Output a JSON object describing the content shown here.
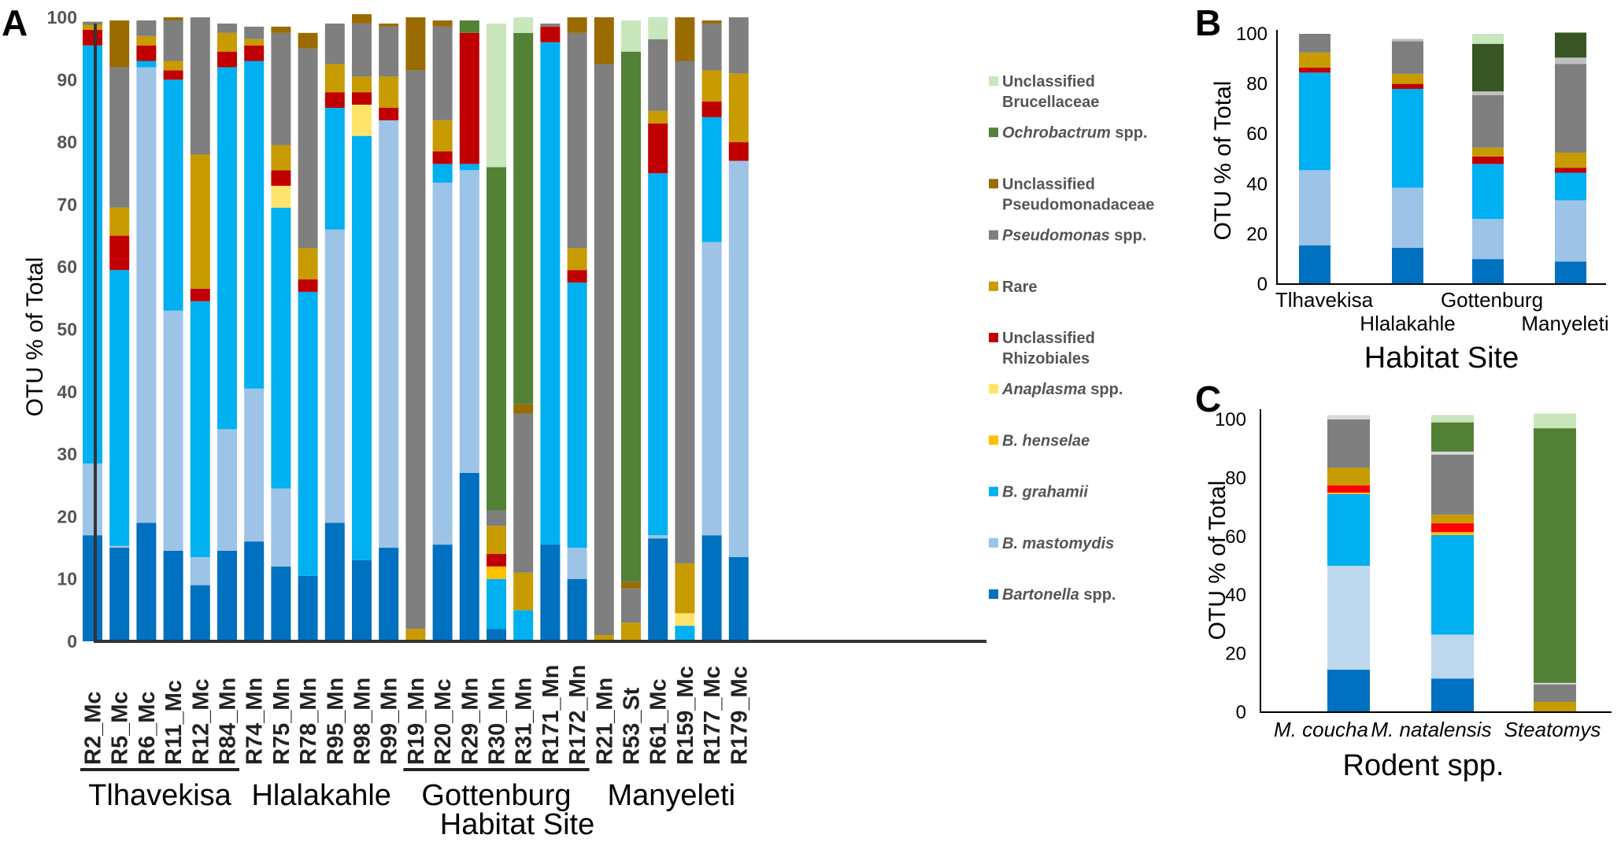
{
  "legend": [
    {
      "key": "unc_bru",
      "lines": [
        "Unclassified",
        "Brucellaceae"
      ],
      "italic": false,
      "color": "#c9e6bc"
    },
    {
      "key": "ochro",
      "lines": [
        "Ochrobactrum spp."
      ],
      "italic": true,
      "color": "#538135"
    },
    {
      "key": "unc_pse",
      "lines": [
        "Unclassified",
        "Pseudomonadaceae"
      ],
      "italic": false,
      "color": "#9a6b00"
    },
    {
      "key": "pseudo",
      "lines": [
        "Pseudomonas spp."
      ],
      "italic": true,
      "color": "#7f7f7f"
    },
    {
      "key": "rare",
      "lines": [
        "Rare"
      ],
      "italic": false,
      "color": "#c89b00"
    },
    {
      "key": "unc_rhi",
      "lines": [
        "Unclassified",
        "Rhizobiales"
      ],
      "italic": false,
      "color": "#c00000"
    },
    {
      "key": "anapl",
      "lines": [
        "Anaplasma spp."
      ],
      "italic": true,
      "color": "#ffe46b"
    },
    {
      "key": "bhen",
      "lines": [
        "B. henselae"
      ],
      "italic": true,
      "color": "#ffc000"
    },
    {
      "key": "bgra",
      "lines": [
        "B.  grahamii"
      ],
      "italic": true,
      "color": "#00b0f0"
    },
    {
      "key": "bmas",
      "lines": [
        "B. mastomydis"
      ],
      "italic": true,
      "color": "#9dc3e6"
    },
    {
      "key": "bart",
      "lines": [
        "Bartonella spp."
      ],
      "italic": true,
      "color": "#0070c0"
    }
  ],
  "chart_data": [
    {
      "panel": "A",
      "type": "bar",
      "stacked": true,
      "ylabel": "OTU % of Total",
      "xlabel": "Habitat Site",
      "ylim": [
        0,
        100
      ],
      "yticks": [
        0,
        10,
        20,
        30,
        40,
        50,
        60,
        70,
        80,
        90,
        100
      ],
      "stack_order": [
        "bart",
        "bmas",
        "bgra",
        "bhen",
        "anapl",
        "unc_rhi",
        "rare",
        "pseudo",
        "unc_pse",
        "ochro",
        "unc_bru"
      ],
      "categories": [
        "R2_Mc",
        "R5_Mc",
        "R6_Mc",
        "R11_Mc",
        "R12_Mc",
        "R84_Mn",
        "R74_Mn",
        "R75_Mn",
        "R78_Mn",
        "R95_Mn",
        "R98_Mn",
        "R99_Mn",
        "R19_Mn",
        "R20_Mc",
        "R29_Mn",
        "R30_Mn",
        "R31_Mn",
        "R171_Mn",
        "R172_Mn",
        "R21_Mn",
        "R53_St",
        "R61_Mc",
        "R159_Mc",
        "R177_Mc",
        "R179_Mc"
      ],
      "series": [
        {
          "key": "bart",
          "values": [
            17,
            15,
            19,
            14.5,
            9,
            14.5,
            16,
            12,
            10.5,
            19,
            13,
            15,
            0,
            15.5,
            27,
            2,
            0,
            15.5,
            10,
            0,
            0,
            16.5,
            0,
            17,
            13.5
          ]
        },
        {
          "key": "bmas",
          "values": [
            11.5,
            0.3,
            73,
            38.5,
            4.5,
            19.5,
            24.5,
            12.5,
            0,
            47,
            0,
            68.5,
            0,
            58,
            48.5,
            0,
            0,
            0,
            5,
            0,
            0,
            0.5,
            0,
            47,
            63.5
          ]
        },
        {
          "key": "bgra",
          "values": [
            67,
            44.2,
            1,
            37,
            41,
            58,
            52.5,
            45,
            45.5,
            19.5,
            68,
            0,
            0,
            3,
            1,
            8,
            5,
            80.5,
            42.5,
            0,
            0,
            58,
            2.5,
            20,
            0
          ]
        },
        {
          "key": "bhen",
          "values": [
            0,
            0,
            0,
            0,
            0,
            0,
            0,
            0,
            0,
            0,
            0,
            0,
            0,
            0,
            0,
            2,
            0,
            0,
            0,
            0,
            0,
            0,
            0,
            0,
            0
          ]
        },
        {
          "key": "anapl",
          "values": [
            0,
            0,
            0,
            0,
            0,
            0,
            0,
            3.5,
            0,
            0,
            5,
            0,
            0,
            0,
            0,
            0,
            0,
            0,
            0,
            0,
            0,
            0,
            2,
            0,
            0
          ]
        },
        {
          "key": "unc_rhi",
          "values": [
            2.5,
            5.5,
            2.5,
            1.5,
            2,
            2.5,
            2.5,
            2.5,
            2,
            2.5,
            2,
            2,
            0,
            2,
            21,
            2,
            0,
            2.5,
            2,
            0,
            0,
            8,
            0,
            2.5,
            3
          ]
        },
        {
          "key": "rare",
          "values": [
            0.8,
            4.5,
            1.5,
            1.5,
            21.5,
            3,
            1,
            4,
            5,
            4.5,
            2.5,
            5,
            2,
            5,
            0,
            4.5,
            6,
            0,
            3.5,
            1,
            3,
            2,
            8,
            5,
            11
          ]
        },
        {
          "key": "pseudo",
          "values": [
            0.5,
            22.5,
            2.5,
            6.5,
            22,
            1.5,
            2,
            18,
            32,
            6.5,
            8.5,
            8,
            89.5,
            15,
            0,
            2.5,
            25.5,
            0.5,
            34.5,
            91.5,
            5.5,
            11.5,
            80.5,
            7.5,
            9
          ]
        },
        {
          "key": "unc_pse",
          "values": [
            0,
            7.5,
            0,
            0.5,
            0,
            0,
            0,
            1,
            2.5,
            0,
            1.5,
            0.5,
            8.5,
            1,
            0,
            0,
            1.5,
            0,
            2.5,
            7.5,
            1,
            0,
            7,
            0.5,
            0
          ]
        },
        {
          "key": "ochro",
          "values": [
            0,
            0,
            0,
            0,
            0,
            0,
            0,
            0,
            0,
            0,
            0,
            0,
            0,
            0,
            2,
            55,
            59.5,
            0,
            0,
            0,
            85,
            0,
            0,
            0,
            0
          ]
        },
        {
          "key": "unc_bru",
          "values": [
            0,
            0,
            0,
            0,
            0,
            0,
            0,
            0,
            0,
            0,
            0,
            0,
            0,
            0,
            0,
            23,
            2.5,
            0,
            0,
            0,
            5,
            3.5,
            0,
            0,
            0
          ]
        }
      ],
      "groups": [
        {
          "name": "Tlhavekisa",
          "from": 0,
          "to": 5,
          "underline": true
        },
        {
          "name": "Hlalakahle",
          "from": 6,
          "to": 11,
          "underline": false
        },
        {
          "name": "Gottenburg",
          "from": 12,
          "to": 18,
          "underline": true
        },
        {
          "name": "Manyeleti",
          "from": 19,
          "to": 24,
          "underline": false
        }
      ]
    },
    {
      "panel": "B",
      "type": "bar",
      "stacked": true,
      "ylabel": "OTU % of Total",
      "xlabel": "Habitat Site",
      "ylim": [
        0,
        100
      ],
      "yticks": [
        0,
        20,
        40,
        60,
        80,
        100
      ],
      "categories": [
        "Tlhavekisa",
        "Hlalakahle",
        "Gottenburg",
        "Manyeleti"
      ],
      "stack_order": [
        "bart",
        "bmas",
        "bgra",
        "unc_rhi",
        "rare",
        "pseudo",
        "lightgray",
        "darkgreen",
        "unc_bru"
      ],
      "series": [
        {
          "key": "bart",
          "color": "#0070c0",
          "values": [
            15.5,
            14.5,
            10,
            9
          ]
        },
        {
          "key": "bmas",
          "color": "#9dc3e6",
          "values": [
            30,
            24,
            16,
            24.5
          ]
        },
        {
          "key": "bgra",
          "color": "#00b0f0",
          "values": [
            39,
            39.5,
            22,
            11
          ]
        },
        {
          "key": "unc_rhi",
          "color": "#c00000",
          "values": [
            2,
            2,
            3,
            2
          ]
        },
        {
          "key": "rare",
          "color": "#c89b00",
          "values": [
            6,
            4,
            3.5,
            6
          ]
        },
        {
          "key": "pseudo",
          "color": "#7f7f7f",
          "values": [
            7.5,
            13,
            21,
            35.5
          ]
        },
        {
          "key": "lightgray",
          "color": "#c0c0c0",
          "values": [
            0,
            1,
            1.5,
            2.5
          ]
        },
        {
          "key": "darkgreen",
          "color": "#375623",
          "values": [
            0,
            0,
            19,
            10
          ]
        },
        {
          "key": "unc_bru",
          "color": "#c9e6bc",
          "values": [
            0,
            0,
            4,
            0
          ]
        }
      ]
    },
    {
      "panel": "C",
      "type": "bar",
      "stacked": true,
      "ylabel": "OTU % of Total",
      "xlabel": "Rodent spp.",
      "ylim": [
        0,
        100
      ],
      "yticks": [
        0,
        20,
        40,
        60,
        80,
        100
      ],
      "categories": [
        "M. coucha",
        "M. natalensis",
        "Steatomys"
      ],
      "stack_order": [
        "bart",
        "bmas",
        "bgra",
        "bhen",
        "unc_rhi",
        "rare",
        "pseudo",
        "lightgray",
        "ochro",
        "unc_bru"
      ],
      "series": [
        {
          "key": "bart",
          "color": "#0070c0",
          "values": [
            14.5,
            11.5,
            0
          ]
        },
        {
          "key": "bmas",
          "color": "#bdd7ee",
          "values": [
            35.5,
            15,
            0
          ]
        },
        {
          "key": "bgra",
          "color": "#00b0f0",
          "values": [
            24.5,
            34,
            0
          ]
        },
        {
          "key": "bhen",
          "color": "#ffc000",
          "values": [
            0.5,
            1,
            0
          ]
        },
        {
          "key": "unc_rhi",
          "color": "#ff0000",
          "values": [
            2.5,
            3,
            0
          ]
        },
        {
          "key": "rare",
          "color": "#c89b00",
          "values": [
            6,
            3,
            3.5
          ]
        },
        {
          "key": "pseudo",
          "color": "#7f7f7f",
          "values": [
            16.5,
            20.5,
            6
          ]
        },
        {
          "key": "lightgray",
          "color": "#d9d9d9",
          "values": [
            1.5,
            1,
            0.5
          ]
        },
        {
          "key": "ochro",
          "color": "#538135",
          "values": [
            0,
            10,
            87
          ]
        },
        {
          "key": "unc_bru",
          "color": "#c9e6bc",
          "values": [
            0,
            2.5,
            5
          ]
        }
      ]
    }
  ]
}
